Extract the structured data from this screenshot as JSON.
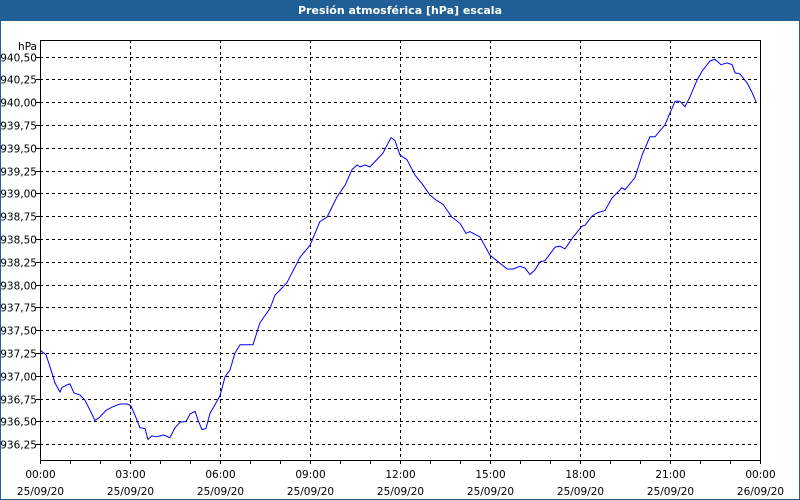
{
  "window": {
    "title": "Presión atmosférica [hPa] escala"
  },
  "colors": {
    "titlebar": "#1f5f96",
    "line": "#0000ff",
    "grid": "#000000"
  },
  "chart_data": {
    "type": "line",
    "title": "Presión atmosférica [hPa] escala",
    "ylabel": "hPa",
    "xlabel": "",
    "ylim": [
      936.1,
      940.65
    ],
    "xlim": [
      0,
      24
    ],
    "grid": true,
    "y_ticks": [
      936.25,
      936.5,
      936.75,
      937.0,
      937.25,
      937.5,
      937.75,
      938.0,
      938.25,
      938.5,
      938.75,
      939.0,
      939.25,
      939.5,
      939.75,
      940.0,
      940.25,
      940.5
    ],
    "y_tick_labels": [
      "936,25",
      "936,50",
      "936,75",
      "937,00",
      "937,25",
      "937,50",
      "937,75",
      "938,00",
      "938,25",
      "938,50",
      "938,75",
      "939,00",
      "939,25",
      "939,50",
      "939,75",
      "940,00",
      "940,25",
      "940,50"
    ],
    "x_ticks": [
      0,
      3,
      6,
      9,
      12,
      15,
      18,
      21,
      24
    ],
    "x_tick_labels": [
      {
        "time": "00:00",
        "date": "25/09/20"
      },
      {
        "time": "03:00",
        "date": "25/09/20"
      },
      {
        "time": "06:00",
        "date": "25/09/20"
      },
      {
        "time": "09:00",
        "date": "25/09/20"
      },
      {
        "time": "12:00",
        "date": "25/09/20"
      },
      {
        "time": "15:00",
        "date": "25/09/20"
      },
      {
        "time": "18:00",
        "date": "25/09/20"
      },
      {
        "time": "21:00",
        "date": "25/09/20"
      },
      {
        "time": "00:00",
        "date": "26/09/20"
      }
    ],
    "series": [
      {
        "name": "Presión atmosférica",
        "x_hours": [
          0,
          0.2,
          0.37,
          0.5,
          0.67,
          0.73,
          0.9,
          1.0,
          1.13,
          1.33,
          1.5,
          1.67,
          1.83,
          1.97,
          2.2,
          2.43,
          2.67,
          2.9,
          3.03,
          3.2,
          3.33,
          3.5,
          3.6,
          3.73,
          3.87,
          4.0,
          4.13,
          4.33,
          4.5,
          4.67,
          4.87,
          5.0,
          5.17,
          5.27,
          5.4,
          5.53,
          5.67,
          5.83,
          6.0,
          6.17,
          6.33,
          6.5,
          6.67,
          7.1,
          7.33,
          7.67,
          7.83,
          8.23,
          8.67,
          9.0,
          9.33,
          9.57,
          9.9,
          10.17,
          10.4,
          10.57,
          10.67,
          10.83,
          11.0,
          11.43,
          11.7,
          11.83,
          12.0,
          12.23,
          12.5,
          12.77,
          13.0,
          13.23,
          13.43,
          13.73,
          14.0,
          14.2,
          14.33,
          14.67,
          15.0,
          15.27,
          15.57,
          15.77,
          16.0,
          16.17,
          16.33,
          16.5,
          16.67,
          16.83,
          17.17,
          17.33,
          17.5,
          17.77,
          18.07,
          18.17,
          18.4,
          18.6,
          18.83,
          19.07,
          19.4,
          19.5,
          19.83,
          20.07,
          20.33,
          20.5,
          20.83,
          21.17,
          21.33,
          21.5,
          21.67,
          21.9,
          22.07,
          22.33,
          22.5,
          22.7,
          22.9,
          23.07,
          23.17,
          23.33,
          23.57,
          23.73,
          23.87
        ],
        "values": [
          937.28,
          937.23,
          937.06,
          936.92,
          936.82,
          936.87,
          936.9,
          936.91,
          936.81,
          936.79,
          936.73,
          936.62,
          936.51,
          936.54,
          936.62,
          936.66,
          936.69,
          936.69,
          936.67,
          936.54,
          936.43,
          936.42,
          936.3,
          936.34,
          936.33,
          936.34,
          936.35,
          936.32,
          936.43,
          936.49,
          936.5,
          936.58,
          936.61,
          936.51,
          936.41,
          936.42,
          936.59,
          936.68,
          936.78,
          936.99,
          937.06,
          937.25,
          937.34,
          937.34,
          937.58,
          937.74,
          937.88,
          938.02,
          938.3,
          938.43,
          938.69,
          938.74,
          938.96,
          939.09,
          939.26,
          939.31,
          939.29,
          939.31,
          939.29,
          939.44,
          939.61,
          939.58,
          939.42,
          939.37,
          939.2,
          939.09,
          938.98,
          938.92,
          938.88,
          938.74,
          938.67,
          938.56,
          938.58,
          938.52,
          938.32,
          938.25,
          938.17,
          938.17,
          938.2,
          938.18,
          938.11,
          938.16,
          938.25,
          938.26,
          938.41,
          938.42,
          938.39,
          938.52,
          938.64,
          938.65,
          938.75,
          938.79,
          938.81,
          938.95,
          939.06,
          939.04,
          939.17,
          939.42,
          939.62,
          939.62,
          939.75,
          940.01,
          940.01,
          939.95,
          940.06,
          940.24,
          940.34,
          940.45,
          940.47,
          940.41,
          940.43,
          940.41,
          940.32,
          940.31,
          940.21,
          940.11,
          940.0
        ]
      }
    ]
  }
}
